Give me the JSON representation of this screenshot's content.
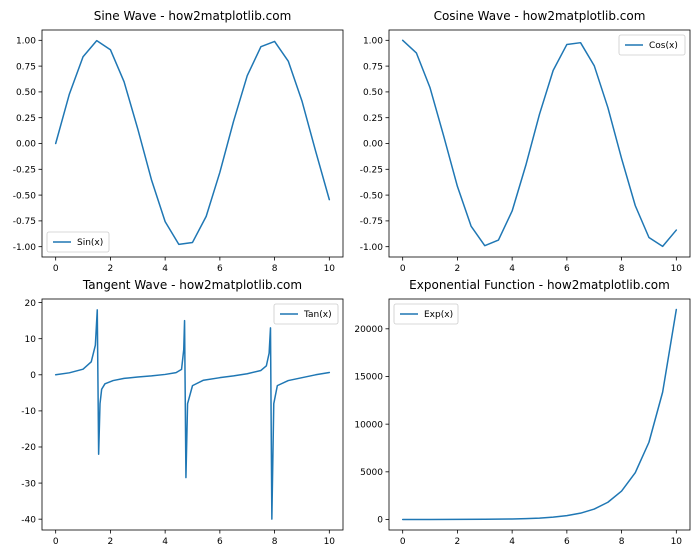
{
  "chart_data": [
    {
      "type": "line",
      "title": "Sine Wave - how2matplotlib.com",
      "xlim": [
        -0.5,
        10.5
      ],
      "ylim": [
        -1.1,
        1.1
      ],
      "xticks": [
        0,
        2,
        4,
        6,
        8,
        10
      ],
      "xtick_labels": [
        "0",
        "2",
        "4",
        "6",
        "8",
        "10"
      ],
      "yticks": [
        1.0,
        0.75,
        0.5,
        0.25,
        0.0,
        -0.25,
        -0.5,
        -0.75,
        -1.0
      ],
      "ytick_labels": [
        "1.00",
        "0.75",
        "0.50",
        "0.25",
        "0.00",
        "-0.25",
        "-0.50",
        "-0.75",
        "-1.00"
      ],
      "legend": "lower-left",
      "grid": false,
      "series": [
        {
          "name": "Sin(x)",
          "color": "#1f77b4",
          "x": [
            0,
            0.5,
            1,
            1.5,
            2,
            2.5,
            3,
            3.5,
            4,
            4.5,
            5,
            5.5,
            6,
            6.5,
            7,
            7.5,
            8,
            8.5,
            9,
            9.5,
            10
          ],
          "y": [
            0,
            0.479,
            0.841,
            0.997,
            0.909,
            0.598,
            0.141,
            -0.351,
            -0.757,
            -0.978,
            -0.959,
            -0.706,
            -0.279,
            0.215,
            0.657,
            0.938,
            0.989,
            0.798,
            0.412,
            -0.075,
            -0.544
          ]
        }
      ]
    },
    {
      "type": "line",
      "title": "Cosine Wave - how2matplotlib.com",
      "xlim": [
        -0.5,
        10.5
      ],
      "ylim": [
        -1.1,
        1.1
      ],
      "xticks": [
        0,
        2,
        4,
        6,
        8,
        10
      ],
      "xtick_labels": [
        "0",
        "2",
        "4",
        "6",
        "8",
        "10"
      ],
      "yticks": [
        1.0,
        0.75,
        0.5,
        0.25,
        0.0,
        -0.25,
        -0.5,
        -0.75,
        -1.0
      ],
      "ytick_labels": [
        "1.00",
        "0.75",
        "0.50",
        "0.25",
        "0.00",
        "-0.25",
        "-0.50",
        "-0.75",
        "-1.00"
      ],
      "legend": "upper-right",
      "grid": false,
      "series": [
        {
          "name": "Cos(x)",
          "color": "#1f77b4",
          "x": [
            0,
            0.5,
            1,
            1.5,
            2,
            2.5,
            3,
            3.5,
            4,
            4.5,
            5,
            5.5,
            6,
            6.5,
            7,
            7.5,
            8,
            8.5,
            9,
            9.5,
            10
          ],
          "y": [
            1.0,
            0.878,
            0.54,
            0.071,
            -0.416,
            -0.801,
            -0.99,
            -0.936,
            -0.654,
            -0.211,
            0.284,
            0.709,
            0.96,
            0.977,
            0.754,
            0.347,
            -0.146,
            -0.602,
            -0.911,
            -0.997,
            -0.839
          ]
        }
      ]
    },
    {
      "type": "line",
      "title": "Tangent Wave - how2matplotlib.com",
      "xlim": [
        -0.5,
        10.5
      ],
      "ylim": [
        -43,
        21
      ],
      "xticks": [
        0,
        2,
        4,
        6,
        8,
        10
      ],
      "xtick_labels": [
        "0",
        "2",
        "4",
        "6",
        "8",
        "10"
      ],
      "yticks": [
        20,
        10,
        0,
        -10,
        -20,
        -30,
        -40
      ],
      "ytick_labels": [
        "20",
        "10",
        "0",
        "-10",
        "-20",
        "-30",
        "-40"
      ],
      "legend": "upper-right",
      "grid": false,
      "series": [
        {
          "name": "Tan(x)",
          "color": "#1f77b4",
          "x": [
            0,
            0.5,
            1.0,
            1.3,
            1.45,
            1.52,
            1.57,
            1.62,
            1.68,
            1.8,
            2.1,
            2.5,
            3.0,
            3.5,
            4.0,
            4.4,
            4.6,
            4.68,
            4.71,
            4.76,
            4.82,
            5.0,
            5.4,
            6.0,
            6.5,
            7.0,
            7.5,
            7.7,
            7.8,
            7.85,
            7.9,
            7.97,
            8.1,
            8.5,
            9.0,
            9.5,
            10.0
          ],
          "y": [
            0,
            0.55,
            1.56,
            3.6,
            8.2,
            18.0,
            -22.0,
            -8.0,
            -4.0,
            -2.5,
            -1.6,
            -1.0,
            -0.6,
            -0.3,
            0.1,
            0.6,
            1.5,
            7.0,
            15.0,
            -28.5,
            -8.0,
            -3.0,
            -1.5,
            -0.8,
            -0.3,
            0.3,
            1.2,
            2.5,
            6.0,
            13.0,
            -40.0,
            -8.0,
            -3.0,
            -1.6,
            -0.8,
            0.0,
            0.65
          ]
        }
      ]
    },
    {
      "type": "line",
      "title": "Exponential Function - how2matplotlib.com",
      "xlim": [
        -0.5,
        10.5
      ],
      "ylim": [
        -1101,
        23127
      ],
      "xticks": [
        0,
        2,
        4,
        6,
        8,
        10
      ],
      "xtick_labels": [
        "0",
        "2",
        "4",
        "6",
        "8",
        "10"
      ],
      "yticks": [
        0,
        5000,
        10000,
        15000,
        20000
      ],
      "ytick_labels": [
        "0",
        "5000",
        "10000",
        "15000",
        "20000"
      ],
      "legend": "upper-left",
      "grid": false,
      "series": [
        {
          "name": "Exp(x)",
          "color": "#1f77b4",
          "x": [
            0,
            1,
            2,
            3,
            4,
            4.5,
            5,
            5.5,
            6,
            6.5,
            7,
            7.5,
            8,
            8.5,
            9,
            9.5,
            10
          ],
          "y": [
            1,
            2.7,
            7.4,
            20.1,
            54.6,
            90,
            148.4,
            244.7,
            403.4,
            665.1,
            1096.6,
            1808,
            2981,
            4915,
            8103,
            13360,
            22026
          ]
        }
      ]
    }
  ]
}
